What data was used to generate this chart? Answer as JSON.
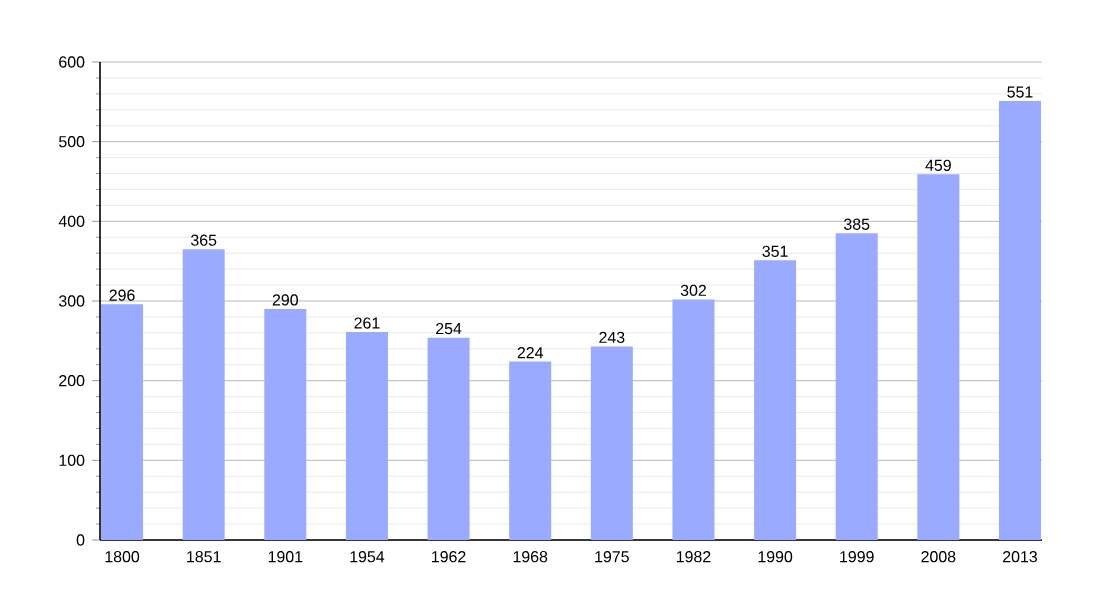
{
  "chart_data": {
    "type": "bar",
    "categories": [
      "1800",
      "1851",
      "1901",
      "1954",
      "1962",
      "1968",
      "1975",
      "1982",
      "1990",
      "1999",
      "2008",
      "2013"
    ],
    "values": [
      296,
      365,
      290,
      261,
      254,
      224,
      243,
      302,
      351,
      385,
      459,
      551
    ],
    "color": "#99aaff",
    "ylim": [
      0,
      600
    ],
    "yticks": [
      0,
      100,
      200,
      300,
      400,
      500,
      600
    ],
    "grid": true,
    "data_labels": true
  }
}
